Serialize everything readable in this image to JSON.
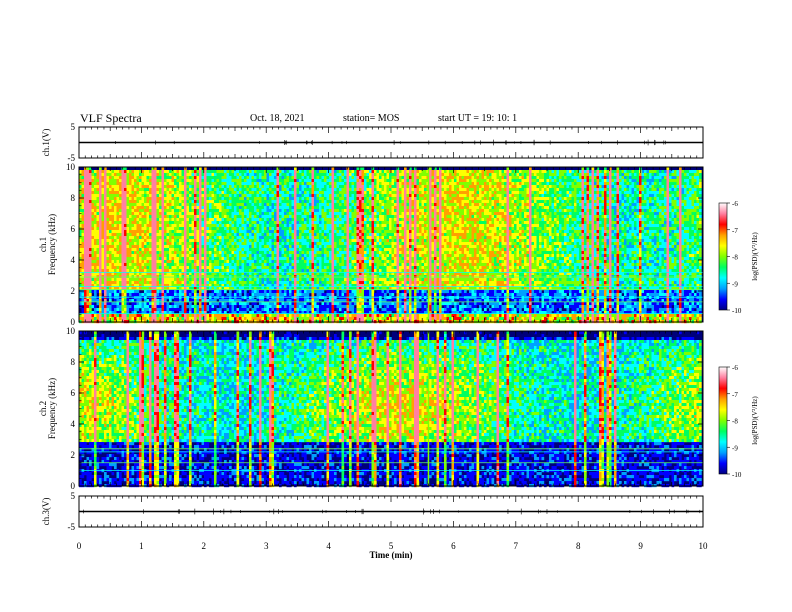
{
  "header": {
    "title": "VLF Spectra",
    "date": "Oct. 18, 2021",
    "station": "station= MOS",
    "start": "start  UT =   19: 10: 1"
  },
  "chart_data": [
    {
      "type": "line",
      "id": "ch1-waveform",
      "ylabel": "ch.1(V)",
      "ylim": [
        -5,
        5
      ],
      "yticks": [
        5,
        -5
      ],
      "xlim": [
        0,
        10
      ],
      "baseline": 0
    },
    {
      "type": "heatmap",
      "id": "ch1-spectrogram",
      "ylabel": "ch.1\nFrequency (kHz)",
      "ylim": [
        0,
        10
      ],
      "yticks": [
        0,
        2,
        4,
        6,
        8,
        10
      ],
      "xlim": [
        0,
        10
      ],
      "colorbar": {
        "label": "log(PSD)(V²/Hz)",
        "range": [
          -10,
          -6
        ],
        "ticks": [
          -6,
          -7,
          -8,
          -9,
          -10
        ]
      }
    },
    {
      "type": "heatmap",
      "id": "ch2-spectrogram",
      "ylabel": "ch.2\nFrequency (kHz)",
      "ylim": [
        0,
        10
      ],
      "yticks": [
        0,
        2,
        4,
        6,
        8,
        10
      ],
      "xlim": [
        0,
        10
      ],
      "colorbar": {
        "label": "log(PSD)(V²/Hz)",
        "range": [
          -10,
          -6
        ],
        "ticks": [
          -6,
          -7,
          -8,
          -9,
          -10
        ]
      }
    },
    {
      "type": "line",
      "id": "ch3-waveform",
      "ylabel": "ch.3(V)",
      "ylim": [
        -5,
        5
      ],
      "yticks": [
        5,
        -5
      ],
      "xlim": [
        0,
        10
      ],
      "baseline": 0
    }
  ],
  "xaxis": {
    "label": "Time (min)",
    "ticks": [
      0,
      1,
      2,
      3,
      4,
      5,
      6,
      7,
      8,
      9,
      10
    ]
  },
  "colors": {
    "colormap": [
      "#000080",
      "#0000ff",
      "#00a0ff",
      "#00ffff",
      "#00ff60",
      "#80ff00",
      "#ffff00",
      "#ffa000",
      "#ff0000",
      "#ff80a0",
      "#ffffff"
    ]
  }
}
